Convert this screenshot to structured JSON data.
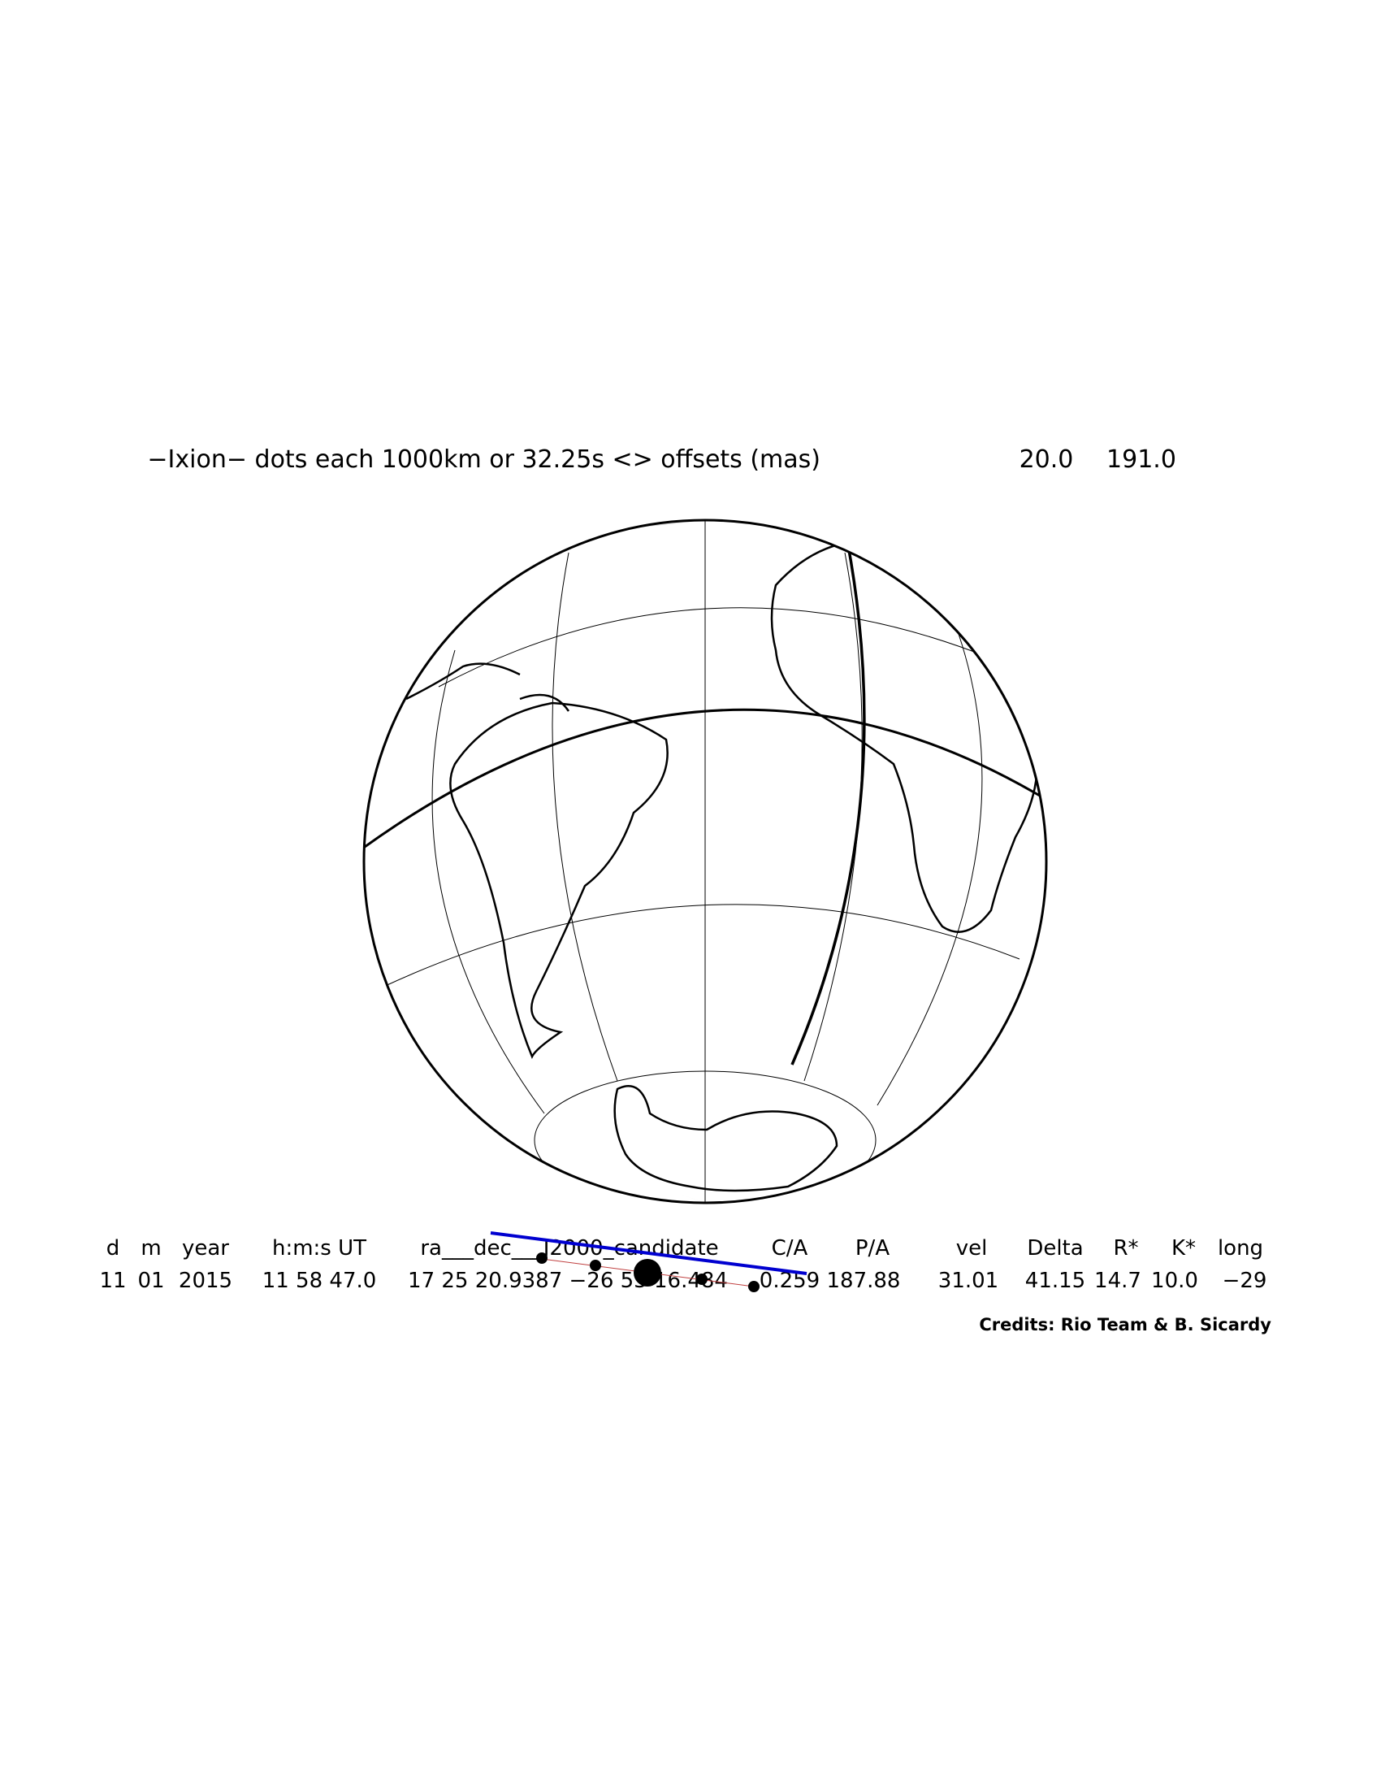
{
  "title": {
    "text": "−Ixion− dots each 1000km or 32.25s <> offsets (mas)",
    "offset_ra": "20.0",
    "offset_dec": "191.0"
  },
  "table": {
    "header": [
      "d",
      "m",
      "year",
      "h:m:s UT",
      "ra___dec___J2000_candidate",
      "C/A",
      "P/A",
      "vel",
      "Delta",
      "R*",
      "K*",
      "long"
    ],
    "values": [
      "11",
      "01",
      "2015",
      "11 58 47.0",
      "17 25 20.9387 −26 53 16.484",
      "0.259",
      "187.88",
      "31.01",
      "41.15",
      "14.7",
      "10.0",
      "−29"
    ]
  },
  "credits": "Credits: Rio Team & B. Sicardy"
}
